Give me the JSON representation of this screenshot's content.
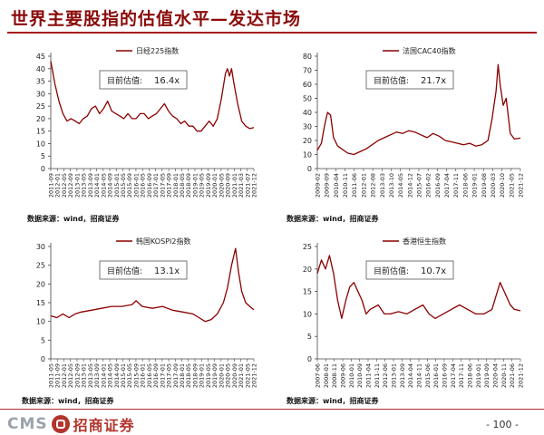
{
  "page": {
    "title": "世界主要股指的估值水平—发达市场",
    "footer": {
      "brand_latin": "CMS",
      "brand_cn": "招商证券",
      "page_number": "- 100 -"
    },
    "colors": {
      "line": "#8b0000",
      "title": "#8a0a0a",
      "rule": "#a61c1c"
    },
    "icons": {
      "logo": "cms-logo-icon"
    }
  },
  "chart_data": [
    {
      "type": "line",
      "series": [
        {
          "name": "日经225指数"
        }
      ],
      "annotation": {
        "label": "目前估值:",
        "value": "16.4x"
      },
      "source": "数据来源：wind，招商证券",
      "ylim": [
        0,
        45
      ],
      "yticks": [
        "0",
        "5",
        "10",
        "15",
        "20",
        "25",
        "30",
        "35",
        "40",
        "45"
      ],
      "xticks": [
        "2011-09",
        "2012-01",
        "2012-05",
        "2012-09",
        "2013-01",
        "2013-05",
        "2013-09",
        "2014-01",
        "2014-05",
        "2014-09",
        "2015-01",
        "2015-05",
        "2015-09",
        "2016-01",
        "2016-05",
        "2016-09",
        "2017-01",
        "2017-05",
        "2017-09",
        "2018-01",
        "2018-05",
        "2018-09",
        "2019-01",
        "2019-05",
        "2019-09",
        "2020-01",
        "2020-05",
        "2020-09",
        "2021-01",
        "2021-03",
        "2021-07",
        "2021-12"
      ],
      "points": [
        [
          0,
          43
        ],
        [
          0.02,
          34
        ],
        [
          0.04,
          27
        ],
        [
          0.06,
          22
        ],
        [
          0.08,
          19
        ],
        [
          0.1,
          20
        ],
        [
          0.12,
          19
        ],
        [
          0.14,
          18
        ],
        [
          0.16,
          20
        ],
        [
          0.18,
          21
        ],
        [
          0.2,
          24
        ],
        [
          0.22,
          25
        ],
        [
          0.24,
          22
        ],
        [
          0.26,
          24
        ],
        [
          0.28,
          27
        ],
        [
          0.3,
          23
        ],
        [
          0.32,
          22
        ],
        [
          0.34,
          21
        ],
        [
          0.36,
          20
        ],
        [
          0.38,
          22
        ],
        [
          0.4,
          20
        ],
        [
          0.42,
          20
        ],
        [
          0.44,
          22
        ],
        [
          0.46,
          22
        ],
        [
          0.48,
          20
        ],
        [
          0.5,
          21
        ],
        [
          0.52,
          22
        ],
        [
          0.54,
          24
        ],
        [
          0.56,
          26
        ],
        [
          0.58,
          23
        ],
        [
          0.6,
          21
        ],
        [
          0.62,
          20
        ],
        [
          0.64,
          18
        ],
        [
          0.66,
          19
        ],
        [
          0.68,
          17
        ],
        [
          0.7,
          17
        ],
        [
          0.72,
          15
        ],
        [
          0.74,
          15
        ],
        [
          0.76,
          17
        ],
        [
          0.78,
          19
        ],
        [
          0.8,
          17
        ],
        [
          0.82,
          20
        ],
        [
          0.84,
          28
        ],
        [
          0.86,
          38
        ],
        [
          0.87,
          40
        ],
        [
          0.88,
          37
        ],
        [
          0.89,
          40
        ],
        [
          0.9,
          35
        ],
        [
          0.92,
          26
        ],
        [
          0.94,
          19
        ],
        [
          0.96,
          17
        ],
        [
          0.98,
          16
        ],
        [
          1.0,
          16.4
        ]
      ]
    },
    {
      "type": "line",
      "series": [
        {
          "name": "法国CAC40指数"
        }
      ],
      "annotation": {
        "label": "目前估值:",
        "value": "21.7x"
      },
      "source": "数据来源：wind，招商证券",
      "ylim": [
        0,
        80
      ],
      "yticks": [
        "0",
        "10",
        "20",
        "30",
        "40",
        "50",
        "60",
        "70",
        "80"
      ],
      "xticks": [
        "2009-02",
        "2009-09",
        "2010-04",
        "2010-11",
        "2011-06",
        "2012-01",
        "2012-08",
        "2013-03",
        "2013-10",
        "2014-05",
        "2014-12",
        "2015-07",
        "2016-02",
        "2016-09",
        "2017-04",
        "2017-11",
        "2018-06",
        "2019-01",
        "2019-08",
        "2020-03",
        "2020-10",
        "2021-05",
        "2021-12"
      ],
      "points": [
        [
          0,
          13
        ],
        [
          0.02,
          18
        ],
        [
          0.035,
          30
        ],
        [
          0.05,
          40
        ],
        [
          0.065,
          38
        ],
        [
          0.08,
          22
        ],
        [
          0.1,
          16
        ],
        [
          0.12,
          14
        ],
        [
          0.15,
          11
        ],
        [
          0.18,
          10
        ],
        [
          0.21,
          12
        ],
        [
          0.24,
          14
        ],
        [
          0.27,
          17
        ],
        [
          0.3,
          20
        ],
        [
          0.33,
          22
        ],
        [
          0.36,
          24
        ],
        [
          0.39,
          26
        ],
        [
          0.42,
          25
        ],
        [
          0.45,
          27
        ],
        [
          0.48,
          26
        ],
        [
          0.51,
          24
        ],
        [
          0.54,
          22
        ],
        [
          0.57,
          25
        ],
        [
          0.6,
          23
        ],
        [
          0.63,
          20
        ],
        [
          0.66,
          19
        ],
        [
          0.69,
          18
        ],
        [
          0.72,
          17
        ],
        [
          0.75,
          18
        ],
        [
          0.78,
          16
        ],
        [
          0.81,
          17
        ],
        [
          0.84,
          20
        ],
        [
          0.86,
          35
        ],
        [
          0.88,
          55
        ],
        [
          0.89,
          74
        ],
        [
          0.9,
          60
        ],
        [
          0.915,
          45
        ],
        [
          0.93,
          50
        ],
        [
          0.95,
          25
        ],
        [
          0.97,
          21
        ],
        [
          1.0,
          21.7
        ]
      ]
    },
    {
      "type": "line",
      "series": [
        {
          "name": "韩国KOSPI2指数"
        }
      ],
      "annotation": {
        "label": "目前估值:",
        "value": "13.1x"
      },
      "source": "数据来源：wind，招商证券",
      "ylim": [
        0,
        30
      ],
      "yticks": [
        "0",
        "5",
        "10",
        "15",
        "20",
        "25",
        "30"
      ],
      "xticks": [
        "2011-05",
        "2011-09",
        "2012-01",
        "2012-05",
        "2012-09",
        "2013-01",
        "2013-05",
        "2013-09",
        "2014-01",
        "2014-05",
        "2014-09",
        "2015-01",
        "2015-05",
        "2015-09",
        "2016-01",
        "2016-05",
        "2016-09",
        "2017-01",
        "2017-05",
        "2017-09",
        "2018-01",
        "2018-05",
        "2018-09",
        "2019-01",
        "2019-05",
        "2019-09",
        "2020-01",
        "2020-05",
        "2020-09",
        "2021-01",
        "2021-05",
        "2021-12"
      ],
      "points": [
        [
          0,
          11.5
        ],
        [
          0.03,
          11
        ],
        [
          0.06,
          12
        ],
        [
          0.09,
          11
        ],
        [
          0.12,
          12
        ],
        [
          0.15,
          12.5
        ],
        [
          0.2,
          13
        ],
        [
          0.25,
          13.5
        ],
        [
          0.3,
          14
        ],
        [
          0.35,
          14
        ],
        [
          0.4,
          14.5
        ],
        [
          0.42,
          15.5
        ],
        [
          0.45,
          14
        ],
        [
          0.5,
          13.5
        ],
        [
          0.55,
          14
        ],
        [
          0.6,
          13
        ],
        [
          0.65,
          12.5
        ],
        [
          0.7,
          12
        ],
        [
          0.73,
          11
        ],
        [
          0.76,
          10
        ],
        [
          0.79,
          10.5
        ],
        [
          0.82,
          12
        ],
        [
          0.85,
          15
        ],
        [
          0.87,
          19
        ],
        [
          0.89,
          25
        ],
        [
          0.91,
          29.5
        ],
        [
          0.925,
          23
        ],
        [
          0.94,
          18
        ],
        [
          0.96,
          15
        ],
        [
          0.98,
          14
        ],
        [
          1.0,
          13.1
        ]
      ]
    },
    {
      "type": "line",
      "series": [
        {
          "name": "香港恒生指数"
        }
      ],
      "annotation": {
        "label": "目前估值:",
        "value": "10.7x"
      },
      "source": "数据来源：wind，招商证券",
      "ylim": [
        0,
        25
      ],
      "yticks": [
        "0",
        "5",
        "10",
        "15",
        "20",
        "25"
      ],
      "xticks": [
        "2007-06",
        "2008-01",
        "2008-11",
        "2009-06",
        "2010-01",
        "2010-09",
        "2011-04",
        "2011-11",
        "2012-06",
        "2013-01",
        "2013-09",
        "2014-04",
        "2014-11",
        "2015-06",
        "2016-01",
        "2016-09",
        "2017-04",
        "2017-11",
        "2018-06",
        "2019-01",
        "2019-09",
        "2020-04",
        "2020-11",
        "2021-06",
        "2021-12"
      ],
      "points": [
        [
          0,
          19
        ],
        [
          0.02,
          22
        ],
        [
          0.04,
          20
        ],
        [
          0.06,
          23
        ],
        [
          0.08,
          19
        ],
        [
          0.1,
          13
        ],
        [
          0.12,
          9
        ],
        [
          0.14,
          13
        ],
        [
          0.16,
          16
        ],
        [
          0.18,
          17
        ],
        [
          0.2,
          15
        ],
        [
          0.22,
          13
        ],
        [
          0.24,
          10
        ],
        [
          0.26,
          11
        ],
        [
          0.3,
          12
        ],
        [
          0.33,
          10
        ],
        [
          0.36,
          10
        ],
        [
          0.4,
          10.5
        ],
        [
          0.44,
          10
        ],
        [
          0.48,
          11
        ],
        [
          0.52,
          12
        ],
        [
          0.55,
          10
        ],
        [
          0.58,
          9
        ],
        [
          0.62,
          10
        ],
        [
          0.66,
          11
        ],
        [
          0.7,
          12
        ],
        [
          0.74,
          11
        ],
        [
          0.78,
          10
        ],
        [
          0.82,
          10
        ],
        [
          0.86,
          11
        ],
        [
          0.88,
          14
        ],
        [
          0.9,
          17
        ],
        [
          0.92,
          15
        ],
        [
          0.95,
          12
        ],
        [
          0.97,
          11
        ],
        [
          1.0,
          10.7
        ]
      ]
    }
  ]
}
